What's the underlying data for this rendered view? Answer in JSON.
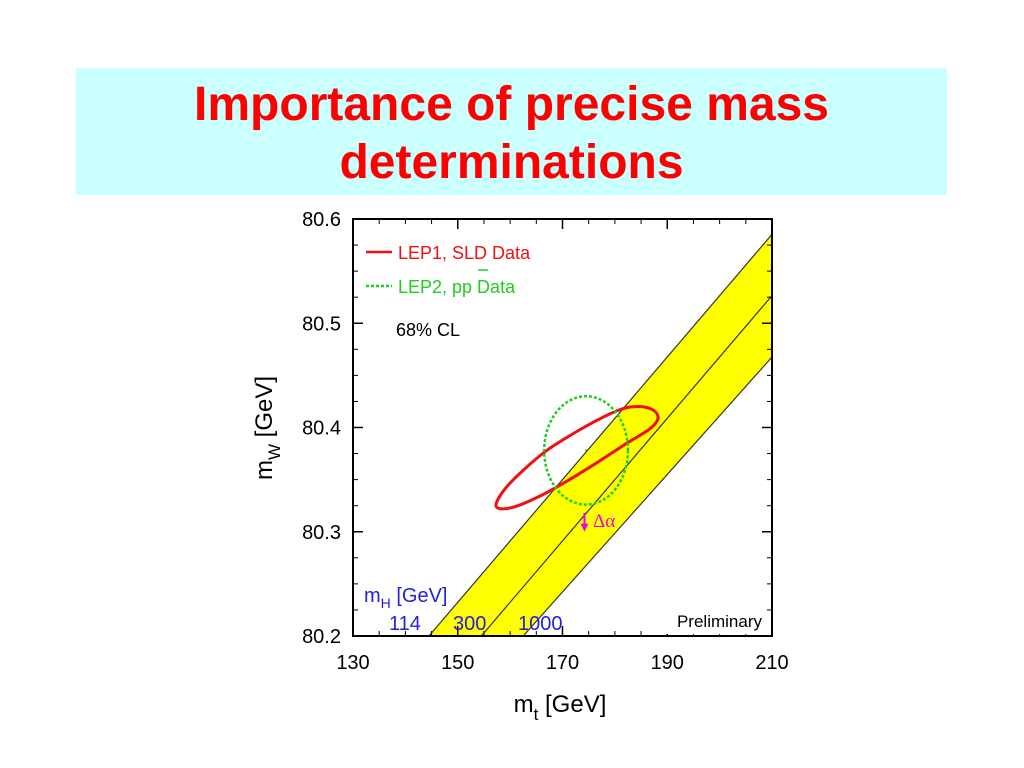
{
  "slide": {
    "title_line1": "Importance of precise mass",
    "title_line2": "determinations"
  },
  "chart_data": {
    "type": "scatter",
    "xlabel": "m_t [GeV]",
    "ylabel": "m_W [GeV]",
    "xlim": [
      130,
      210
    ],
    "ylim": [
      80.2,
      80.6
    ],
    "xticks": [
      "130",
      "150",
      "170",
      "190",
      "210"
    ],
    "yticks": [
      "80.2",
      "80.3",
      "80.4",
      "80.5",
      "80.6"
    ],
    "legend": [
      {
        "label": "LEP1, SLD Data",
        "color": "#ee1111",
        "style": "solid"
      },
      {
        "label": "LEP2, pp Data",
        "color": "#22cc22",
        "style": "dotted"
      }
    ],
    "cl_label": "68% CL",
    "delta_alpha_label": "Δα",
    "delta_alpha_color": "#ee00ee",
    "band_color": "#ffff00",
    "higgs_label": "m_H [GeV]",
    "higgs_label_color": "#2222dd",
    "higgs_lines": [
      {
        "mh": "114",
        "x_at_bottom": 144.5,
        "x_at_top": 212.5
      },
      {
        "mh": "300",
        "x_at_bottom": 154.5,
        "x_at_top": 222.5
      },
      {
        "mh": "1000",
        "x_at_bottom": 162.5,
        "x_at_top": 233.5
      }
    ],
    "preliminary_label": "Preliminary",
    "ellipses": [
      {
        "name": "LEP1, SLD Data",
        "color": "#ee1111",
        "points": [
          [
            157.3,
            80.326
          ],
          [
            159.0,
            80.341
          ],
          [
            162.5,
            80.359
          ],
          [
            167.0,
            80.378
          ],
          [
            172.0,
            80.394
          ],
          [
            177.0,
            80.408
          ],
          [
            181.5,
            80.418
          ],
          [
            185.0,
            80.42
          ],
          [
            187.5,
            80.416
          ],
          [
            188.2,
            80.408
          ],
          [
            186.5,
            80.398
          ],
          [
            182.0,
            80.384
          ],
          [
            176.5,
            80.366
          ],
          [
            171.0,
            80.349
          ],
          [
            166.0,
            80.335
          ],
          [
            161.5,
            80.325
          ],
          [
            158.5,
            80.322
          ]
        ]
      },
      {
        "name": "LEP2, pp Data",
        "color": "#22cc22",
        "center": [
          174.5,
          80.378
        ],
        "rx": 8.0,
        "ry": 0.052
      }
    ],
    "delta_alpha_arrow": {
      "x": 174.2,
      "y_from": 80.318,
      "y_to": 80.302
    }
  }
}
